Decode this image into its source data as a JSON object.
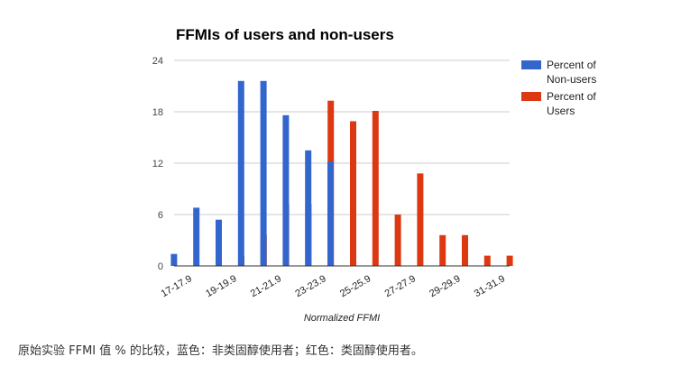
{
  "chart_data": {
    "type": "bar",
    "title": "FFMIs of users and non-users",
    "xlabel": "Normalized FFMI",
    "ylabel": "",
    "ylim": [
      0,
      24
    ],
    "yticks": [
      0,
      6,
      12,
      18,
      24
    ],
    "grid": true,
    "legend_position": "right",
    "categories": [
      "17-17.9",
      "18-18.9",
      "19-19.9",
      "20-20.9",
      "21-21.9",
      "22-22.9",
      "23-23.9",
      "24-24.9",
      "25-25.9",
      "26-26.9",
      "27-27.9",
      "28-28.9",
      "29-29.9",
      "30-30.9",
      "31-31.9"
    ],
    "visible_tick_labels": [
      "17-17.9",
      "19-19.9",
      "21-21.9",
      "23-23.9",
      "25-25.9",
      "27-27.9",
      "29-29.9",
      "31-31.9"
    ],
    "series": [
      {
        "name": "Percent of Non-users",
        "legend_lines": [
          "Percent of",
          "Non-users"
        ],
        "color": "#3366cc",
        "values": [
          1.4,
          6.8,
          5.4,
          21.6,
          21.6,
          17.6,
          13.5,
          12.2,
          0,
          0,
          0,
          0,
          0,
          0,
          0
        ]
      },
      {
        "name": "Percent of Users",
        "legend_lines": [
          "Percent of",
          "Users"
        ],
        "color": "#dc3912",
        "values": [
          0,
          0,
          1.2,
          3.6,
          7.2,
          7.2,
          19.3,
          16.9,
          18.1,
          6.0,
          10.8,
          3.6,
          3.6,
          1.2,
          1.2
        ]
      }
    ]
  },
  "caption": "原始实验 FFMI 值 % 的比较，蓝色：非类固醇使用者；红色：类固醇使用者。"
}
